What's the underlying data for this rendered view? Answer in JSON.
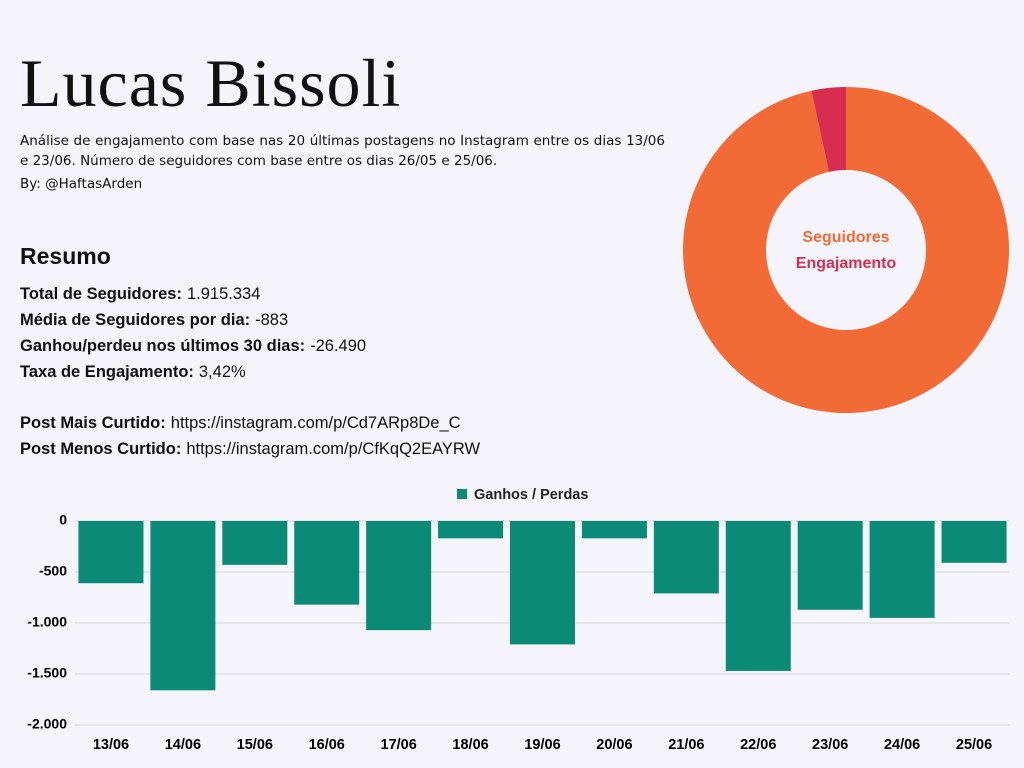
{
  "header": {
    "title": "Lucas Bissoli",
    "description": "Análise de engajamento com base nas 20 últimas postagens no Instagram entre os dias 13/06 e 23/06. Número de seguidores com base entre os dias 26/05 e 25/06.",
    "byline": "By: @HaftasArden"
  },
  "summary": {
    "heading": "Resumo",
    "items": [
      {
        "label": "Total de Seguidores:",
        "value": "1.915.334"
      },
      {
        "label": "Média de Seguidores por dia:",
        "value": "-883"
      },
      {
        "label": "Ganhou/perdeu nos últimos 30 dias:",
        "value": "-26.490"
      },
      {
        "label": "Taxa de Engajamento:",
        "value": "3,42%"
      }
    ],
    "links": [
      {
        "label": "Post Mais Curtido:",
        "value": "https://instagram.com/p/Cd7ARp8De_C"
      },
      {
        "label": "Post Menos Curtido:",
        "value": "https://instagram.com/p/CfKqQ2EAYRW"
      }
    ]
  },
  "chart_data": [
    {
      "type": "pie",
      "categories": [
        "Seguidores",
        "Engajamento"
      ],
      "values": [
        96.6,
        3.4
      ],
      "colors": [
        "#f26a36",
        "#d62d51"
      ]
    },
    {
      "type": "bar",
      "categories": [
        "13/06",
        "14/06",
        "15/06",
        "16/06",
        "17/06",
        "18/06",
        "19/06",
        "20/06",
        "21/06",
        "22/06",
        "23/06",
        "24/06",
        "25/06"
      ],
      "series": [
        {
          "name": "Ganhos / Perdas",
          "color": "#0b8a78",
          "values": [
            -610,
            -1660,
            -430,
            -820,
            -1070,
            -170,
            -1210,
            -170,
            -710,
            -1470,
            -870,
            -950,
            -410
          ]
        }
      ],
      "ylim": [
        -2000,
        0
      ],
      "yticks": [
        0,
        -500,
        {
          "value": -1000,
          "label": "-1.000"
        },
        {
          "value": -1500,
          "label": "-1.500"
        },
        {
          "value": -2000,
          "label": "-2.000"
        }
      ],
      "grid": true,
      "legend": "top"
    }
  ]
}
